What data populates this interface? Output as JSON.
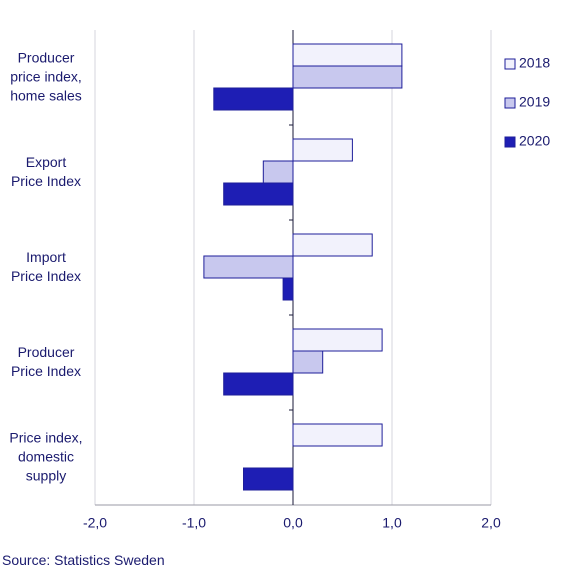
{
  "chart_data": {
    "type": "hbar",
    "categories": [
      "Producer price index, home sales",
      "Export Price Index",
      "Import Price Index",
      "Producer Price Index",
      "Price index, domestic supply"
    ],
    "series": [
      {
        "name": "2018",
        "color": "#f2f2fc",
        "values": [
          1.1,
          0.6,
          0.8,
          0.9,
          0.9
        ]
      },
      {
        "name": "2019",
        "color": "#c8c8ee",
        "values": [
          1.1,
          -0.3,
          -0.9,
          0.3,
          0
        ]
      },
      {
        "name": "2020",
        "color": "#1e1eb4",
        "values": [
          -0.8,
          -0.7,
          -0.1,
          -0.7,
          -0.5
        ]
      }
    ],
    "xlim": [
      -2,
      2
    ],
    "xticks": [
      {
        "value": -2,
        "label": "-2,0"
      },
      {
        "value": -1,
        "label": "-1,0"
      },
      {
        "value": 0,
        "label": "0,0"
      },
      {
        "value": 1,
        "label": "1,0"
      },
      {
        "value": 2,
        "label": "2,0"
      }
    ],
    "grid": true,
    "legend": "right",
    "source": "Source: Statistics Sweden"
  }
}
